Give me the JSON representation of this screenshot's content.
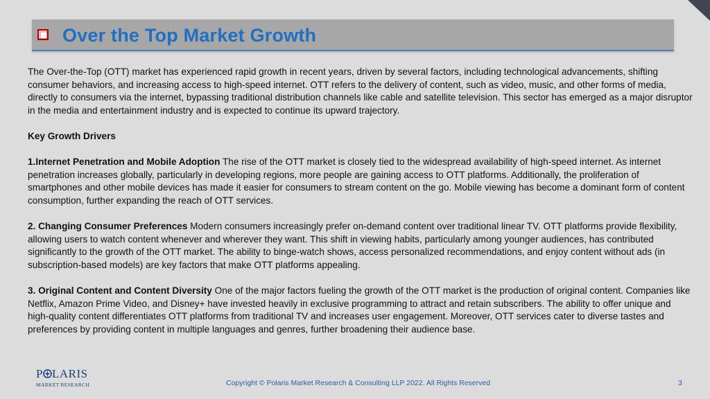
{
  "slide": {
    "title": "Over the Top Market Growth",
    "intro": "The Over-the-Top (OTT) market has experienced rapid growth in recent years, driven by several factors, including technological advancements, shifting consumer behaviors, and increasing access to high-speed internet. OTT refers to the delivery of content, such as video, music, and other forms of media, directly to consumers via the internet, bypassing traditional distribution channels like cable and satellite television. This sector has emerged as a major disruptor in the media and entertainment industry and is expected to continue its upward trajectory.",
    "section_heading": "Key Growth Drivers",
    "drivers": [
      {
        "heading": "1.Internet Penetration and Mobile Adoption",
        "text": " The rise of the OTT market is closely tied to the widespread availability of high-speed internet. As internet penetration increases globally, particularly in developing regions, more people are gaining access to OTT platforms. Additionally, the proliferation of smartphones and other mobile devices has made it easier for consumers to stream content on the go. Mobile viewing has become a dominant form of content consumption, further expanding the reach of OTT services."
      },
      {
        "heading": "2. Changing Consumer Preferences",
        "text": " Modern consumers increasingly prefer on-demand content over traditional linear TV. OTT platforms provide flexibility, allowing users to watch content whenever and wherever they want. This shift in viewing habits, particularly among younger audiences, has contributed significantly to the growth of the OTT market. The ability to binge-watch shows, access personalized recommendations, and enjoy content without ads (in subscription-based models) are key factors that make OTT platforms appealing."
      },
      {
        "heading": "3. Original Content and Content Diversity",
        "text": " One of the major factors fueling the growth of the OTT market is the production of original content. Companies like Netflix, Amazon Prime Video, and Disney+ have invested heavily in exclusive programming to attract and retain subscribers. The ability to offer unique and high-quality content differentiates OTT platforms from traditional TV and increases user engagement. Moreover, OTT services cater to diverse tastes and preferences by providing content in multiple languages and genres, further broadening their audience base."
      }
    ]
  },
  "logo": {
    "name_prefix": "P",
    "name_suffix": "LARIS",
    "tagline": "MARKET RESEARCH"
  },
  "footer": {
    "copyright": "Copyright © Polaris Market Research & Consulting LLP 2022. All Rights Reserved",
    "page_number": "3"
  },
  "colors": {
    "title": "#1f6fc2",
    "bullet": "#c00000",
    "title_bar": "#a7a7a7",
    "logo": "#1d3f7a",
    "footer_text": "#2b5fa8"
  },
  "icons": {
    "bullet": "checkbox-square-bullet-icon",
    "corner": "page-corner-triangle-icon",
    "logo_o": "compass-star-icon"
  }
}
